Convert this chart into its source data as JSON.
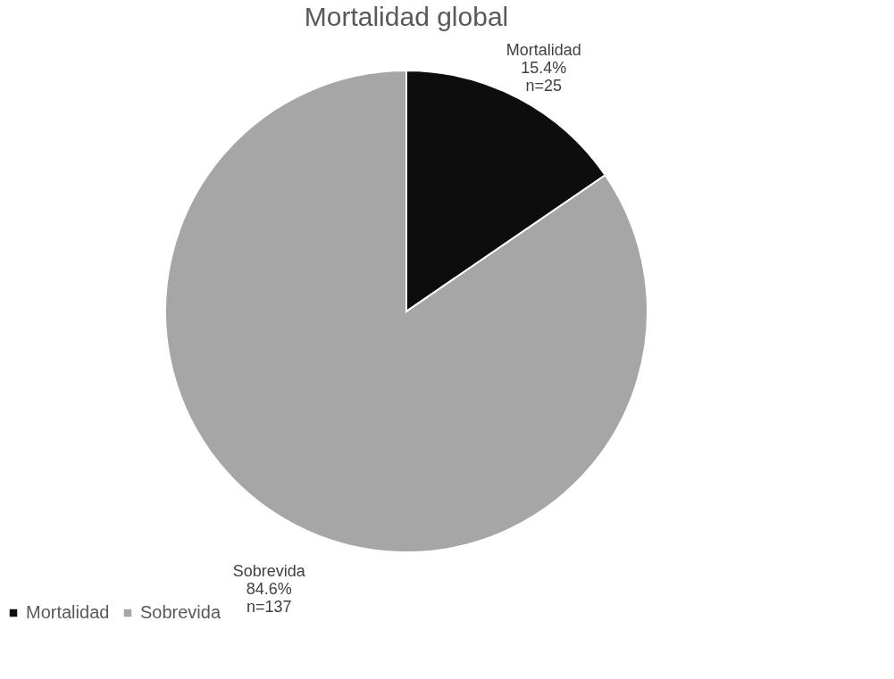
{
  "chart_data": {
    "type": "pie",
    "title": "Mortalidad global",
    "categories": [
      "Mortalidad",
      "Sobrevida"
    ],
    "values": [
      25,
      137
    ],
    "colors": [
      "#0d0d0d",
      "#a6a6a6"
    ],
    "value_labels": [
      "15.4%\nn=25",
      "84.6%\nn=137"
    ],
    "legend": "bottom"
  }
}
